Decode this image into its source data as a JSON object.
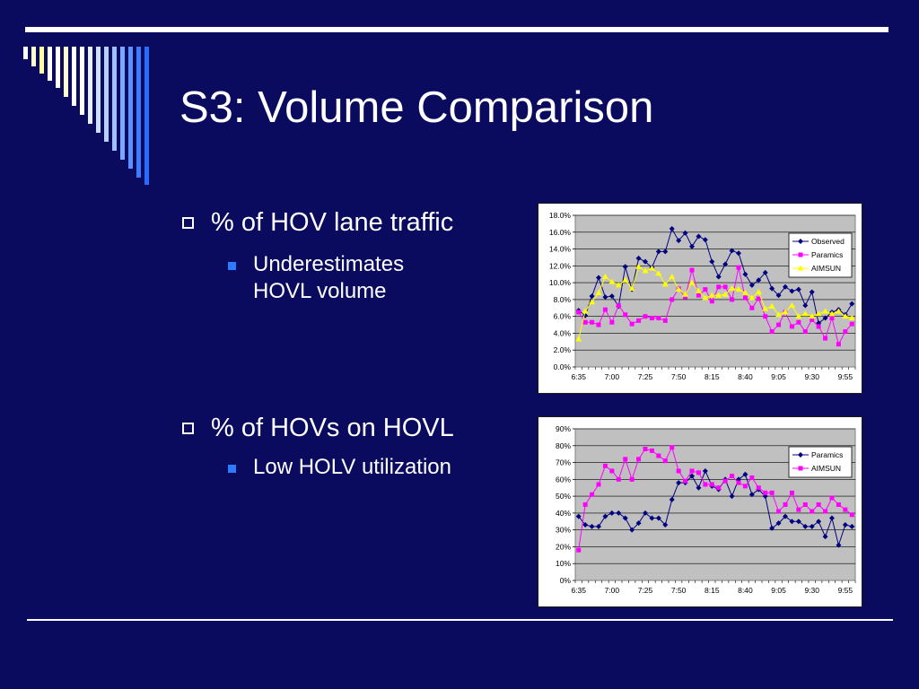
{
  "slide": {
    "title": "S3: Volume Comparison",
    "bullets": [
      {
        "text": "% of HOV lane traffic",
        "sub": [
          "Underestimates",
          "HOVL volume"
        ]
      },
      {
        "text": "% of HOVs on HOVL",
        "sub": [
          "Low HOLV utilization"
        ]
      }
    ]
  },
  "colors": {
    "background": "#0a0b5e",
    "accent": "#2d7cff",
    "plot_bg": "#c0c0c0"
  },
  "chart_data": [
    {
      "type": "line",
      "title": "",
      "xlabel": "",
      "ylabel": "",
      "ylim": [
        0,
        0.18
      ],
      "yticks": [
        "0.0%",
        "2.0%",
        "4.0%",
        "6.0%",
        "8.0%",
        "10.0%",
        "12.0%",
        "14.0%",
        "16.0%",
        "18.0%"
      ],
      "xtick_labels": [
        "6:35",
        "7:00",
        "7:25",
        "7:50",
        "8:15",
        "8:40",
        "9:05",
        "9:30",
        "9:55"
      ],
      "x_points": 42,
      "grid": true,
      "legend": "top-right",
      "series": [
        {
          "name": "Observed",
          "color": "#000080",
          "marker": "diamond",
          "values": [
            0.067,
            0.061,
            0.084,
            0.106,
            0.083,
            0.084,
            0.072,
            0.119,
            0.092,
            0.129,
            0.125,
            0.118,
            0.137,
            0.137,
            0.164,
            0.15,
            0.159,
            0.143,
            0.155,
            0.151,
            0.125,
            0.107,
            0.122,
            0.138,
            0.135,
            0.11,
            0.097,
            0.103,
            0.112,
            0.093,
            0.085,
            0.095,
            0.09,
            0.092,
            0.073,
            0.089,
            0.052,
            0.058,
            0.065,
            0.068,
            0.062,
            0.075
          ]
        },
        {
          "name": "Paramics",
          "color": "#ff00ff",
          "marker": "square",
          "values": [
            0.065,
            0.053,
            0.053,
            0.05,
            0.068,
            0.053,
            0.073,
            0.062,
            0.051,
            0.055,
            0.06,
            0.058,
            0.058,
            0.055,
            0.08,
            0.093,
            0.083,
            0.115,
            0.085,
            0.092,
            0.078,
            0.095,
            0.095,
            0.08,
            0.118,
            0.082,
            0.07,
            0.081,
            0.06,
            0.042,
            0.05,
            0.065,
            0.048,
            0.053,
            0.042,
            0.056,
            0.048,
            0.034,
            0.058,
            0.027,
            0.042,
            0.051
          ]
        },
        {
          "name": "AIMSUN",
          "color": "#ffff00",
          "marker": "triangle",
          "values": [
            0.033,
            0.066,
            0.077,
            0.088,
            0.107,
            0.101,
            0.097,
            0.103,
            0.093,
            0.119,
            0.114,
            0.117,
            0.111,
            0.098,
            0.107,
            0.092,
            0.086,
            0.1,
            0.09,
            0.082,
            0.085,
            0.085,
            0.086,
            0.093,
            0.092,
            0.088,
            0.082,
            0.089,
            0.069,
            0.072,
            0.062,
            0.065,
            0.073,
            0.06,
            0.063,
            0.06,
            0.063,
            0.066,
            0.063,
            0.066,
            0.06,
            0.058
          ]
        }
      ]
    },
    {
      "type": "line",
      "title": "",
      "xlabel": "",
      "ylabel": "",
      "ylim": [
        0,
        0.9
      ],
      "yticks": [
        "0%",
        "10%",
        "20%",
        "30%",
        "40%",
        "50%",
        "60%",
        "70%",
        "80%",
        "90%"
      ],
      "xtick_labels": [
        "6:35",
        "7:00",
        "7:25",
        "7:50",
        "8:15",
        "8:40",
        "9:05",
        "9:30",
        "9:55"
      ],
      "x_points": 42,
      "grid": true,
      "legend": "top-right",
      "series": [
        {
          "name": "Paramics",
          "color": "#000080",
          "marker": "diamond",
          "values": [
            0.38,
            0.33,
            0.32,
            0.32,
            0.38,
            0.4,
            0.4,
            0.37,
            0.3,
            0.34,
            0.4,
            0.37,
            0.37,
            0.33,
            0.48,
            0.58,
            0.58,
            0.62,
            0.55,
            0.65,
            0.56,
            0.54,
            0.6,
            0.5,
            0.6,
            0.63,
            0.51,
            0.54,
            0.5,
            0.31,
            0.34,
            0.38,
            0.35,
            0.35,
            0.32,
            0.32,
            0.35,
            0.26,
            0.37,
            0.21,
            0.33,
            0.32
          ]
        },
        {
          "name": "AIMSUN",
          "color": "#ff00ff",
          "marker": "square",
          "values": [
            0.18,
            0.45,
            0.51,
            0.57,
            0.68,
            0.65,
            0.6,
            0.72,
            0.6,
            0.72,
            0.78,
            0.77,
            0.74,
            0.71,
            0.79,
            0.65,
            0.59,
            0.65,
            0.64,
            0.57,
            0.57,
            0.55,
            0.59,
            0.62,
            0.58,
            0.56,
            0.61,
            0.55,
            0.52,
            0.52,
            0.41,
            0.45,
            0.52,
            0.42,
            0.45,
            0.41,
            0.45,
            0.41,
            0.49,
            0.45,
            0.42,
            0.39
          ]
        }
      ]
    }
  ]
}
